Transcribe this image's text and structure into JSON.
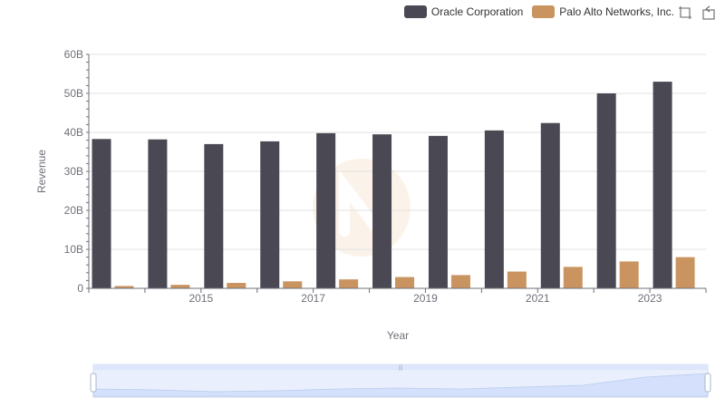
{
  "legend": {
    "items": [
      {
        "label": "Oracle Corporation",
        "color": "#4a4953"
      },
      {
        "label": "Palo Alto Networks, Inc.",
        "color": "#c99460"
      }
    ]
  },
  "toolbox": {
    "icons": [
      "zoom-icon",
      "restore-icon"
    ]
  },
  "colors": {
    "grid": "#e0e0e0",
    "axis": "#6e7079",
    "zoom_fill": "#dbe6ff",
    "zoom_border": "#d2dbee"
  },
  "chart_data": {
    "type": "bar",
    "xlabel": "Year",
    "ylabel": "Revenue",
    "x": [
      2014,
      2015,
      2016,
      2017,
      2018,
      2019,
      2020,
      2021,
      2022,
      2023,
      2024
    ],
    "x_tick_labels": [
      "2015",
      "2017",
      "2019",
      "2021",
      "2023"
    ],
    "y_tick_labels": [
      "0",
      "10B",
      "20B",
      "30B",
      "40B",
      "50B",
      "60B"
    ],
    "ylim": [
      0,
      60000000000
    ],
    "grid": true,
    "legend_position": "top-right",
    "series": [
      {
        "name": "Oracle Corporation",
        "color": "#4a4953",
        "values": [
          38300000000,
          38200000000,
          37000000000,
          37700000000,
          39800000000,
          39500000000,
          39100000000,
          40500000000,
          42400000000,
          50000000000,
          53000000000
        ]
      },
      {
        "name": "Palo Alto Networks, Inc.",
        "color": "#c99460",
        "values": [
          600000000,
          900000000,
          1400000000,
          1800000000,
          2300000000,
          2900000000,
          3400000000,
          4300000000,
          5500000000,
          6900000000,
          8000000000
        ]
      }
    ]
  }
}
